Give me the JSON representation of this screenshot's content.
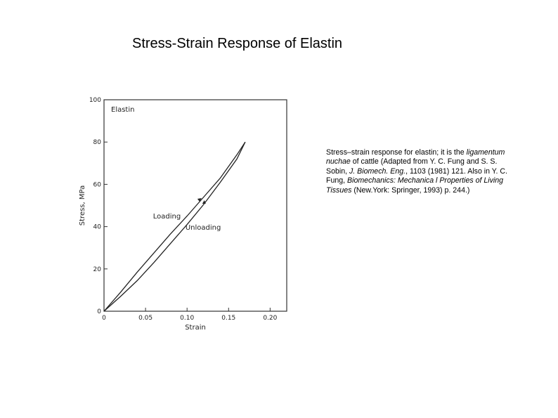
{
  "slide": {
    "title": "Stress-Strain Response of Elastin"
  },
  "caption": {
    "p1": "Stress–strain response for elastin; it is the ",
    "p2": "ligamentum nuchae",
    "p3": " of cattle (Adapted from Y. C. Fung and S. S. Sobin, ",
    "p4": "J. Biomech. Eng.",
    "p5": ", 1103 (1981) 121. Also in Y. C. Fung, ",
    "p6": "Biomechanics: Mechanica l Properties of Living Tissues",
    "p7": " (New.York: Springer, 1993) p. 244.)"
  },
  "chart_data": {
    "type": "line",
    "title": "Elastin",
    "xlabel": "Strain",
    "ylabel": "Stress, MPa",
    "xlim": [
      0,
      0.22
    ],
    "ylim": [
      0,
      100
    ],
    "xticks": [
      0,
      0.05,
      0.1,
      0.15,
      0.2
    ],
    "xtick_labels": [
      "0",
      "0.05",
      "0.10",
      "0.15",
      "0.20"
    ],
    "yticks": [
      0,
      20,
      40,
      60,
      80,
      100
    ],
    "ytick_labels": [
      "0",
      "20",
      "40",
      "60",
      "80",
      "100"
    ],
    "grid": false,
    "series": [
      {
        "name": "Loading",
        "x": [
          0,
          0.02,
          0.04,
          0.06,
          0.08,
          0.1,
          0.12,
          0.14,
          0.16,
          0.17
        ],
        "y": [
          0,
          9,
          18.5,
          27.5,
          36.5,
          45,
          54,
          63,
          74,
          80
        ]
      },
      {
        "name": "Unloading",
        "x": [
          0,
          0.02,
          0.04,
          0.06,
          0.08,
          0.1,
          0.12,
          0.14,
          0.16,
          0.17
        ],
        "y": [
          0,
          7,
          14.5,
          23,
          32,
          41,
          50.5,
          61,
          72,
          80
        ]
      }
    ],
    "annotations": [
      {
        "text": "Loading"
      },
      {
        "text": "Unloading"
      }
    ]
  }
}
